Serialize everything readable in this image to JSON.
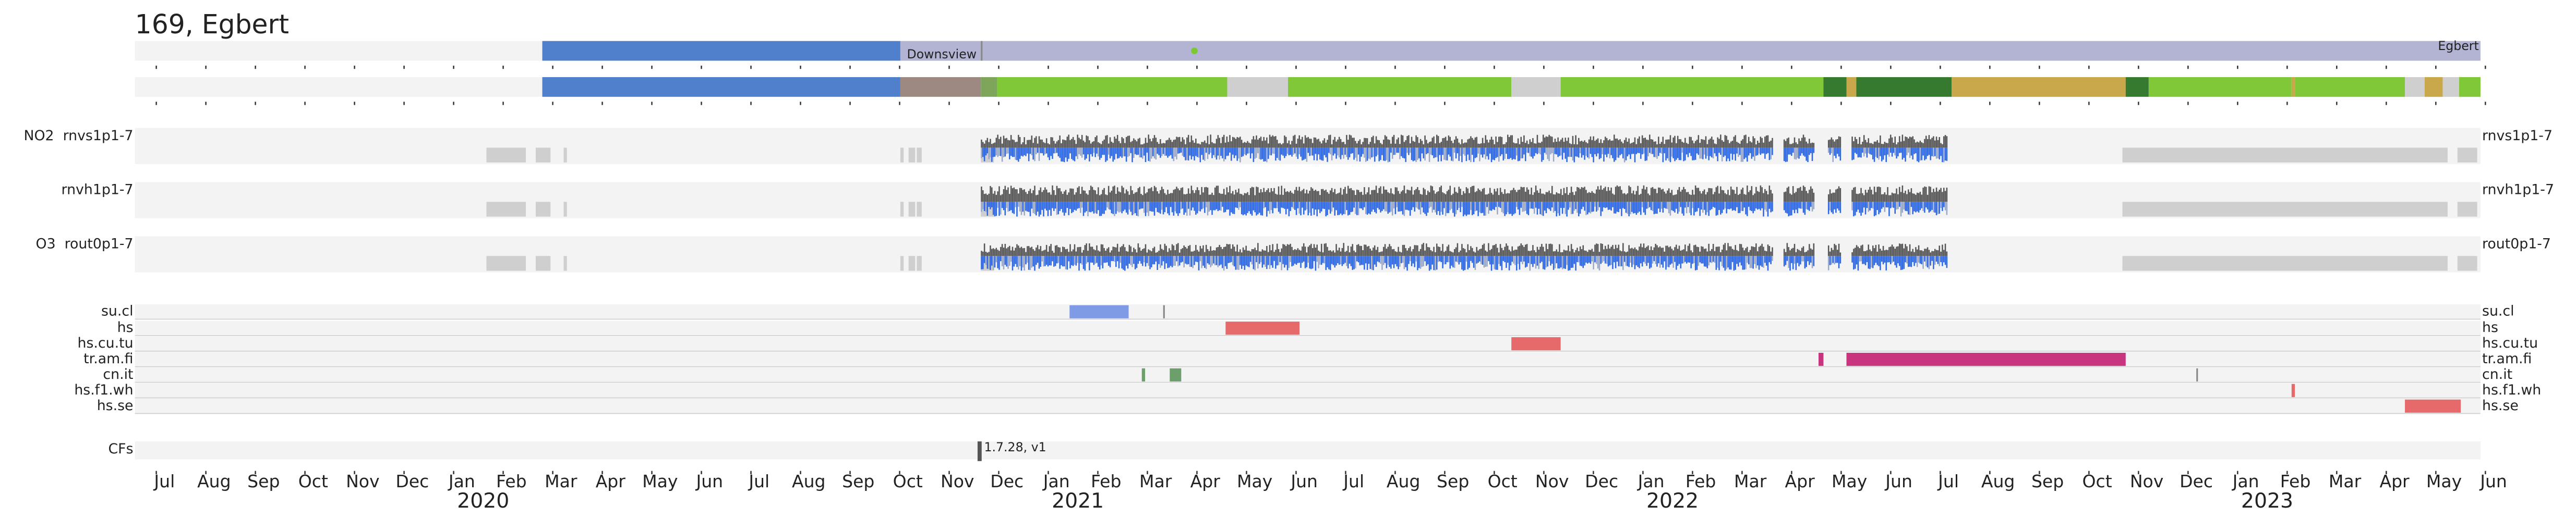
{
  "title": "169, Egbert",
  "timeline": {
    "annotations": [
      "Downsview",
      "Egbert"
    ]
  },
  "rows": [
    {
      "left": "NO2  rnvs1p1-7",
      "right": "rnvs1p1-7"
    },
    {
      "left": "rnvh1p1-7",
      "right": "rnvh1p1-7"
    },
    {
      "left": "O3  rout0p1-7",
      "right": "rout0p1-7"
    }
  ],
  "events": [
    "su.cl",
    "hs",
    "hs.cu.tu",
    "tr.am.fi",
    "cn.it",
    "hs.f1.wh",
    "hs.se"
  ],
  "cfs": {
    "label": "CFs",
    "annotation": "1.7.28, v1"
  },
  "axis": {
    "months": [
      "Jul",
      "Aug",
      "Sep",
      "Oct",
      "Nov",
      "Dec",
      "Jan",
      "Feb",
      "Mar",
      "Apr",
      "May",
      "Jun",
      "Jul",
      "Aug",
      "Sep",
      "Oct",
      "Nov",
      "Dec",
      "Jan",
      "Feb",
      "Mar",
      "Apr",
      "May",
      "Jun",
      "Jul",
      "Aug",
      "Sep",
      "Oct",
      "Nov",
      "Dec",
      "Jan",
      "Feb",
      "Mar",
      "Apr",
      "May",
      "Jun",
      "Jul",
      "Aug",
      "Sep",
      "Oct",
      "Nov",
      "Dec",
      "Jan",
      "Feb",
      "Mar",
      "Apr",
      "May",
      "Jun"
    ],
    "years": [
      "2020",
      "2021",
      "2022",
      "2023"
    ]
  }
}
